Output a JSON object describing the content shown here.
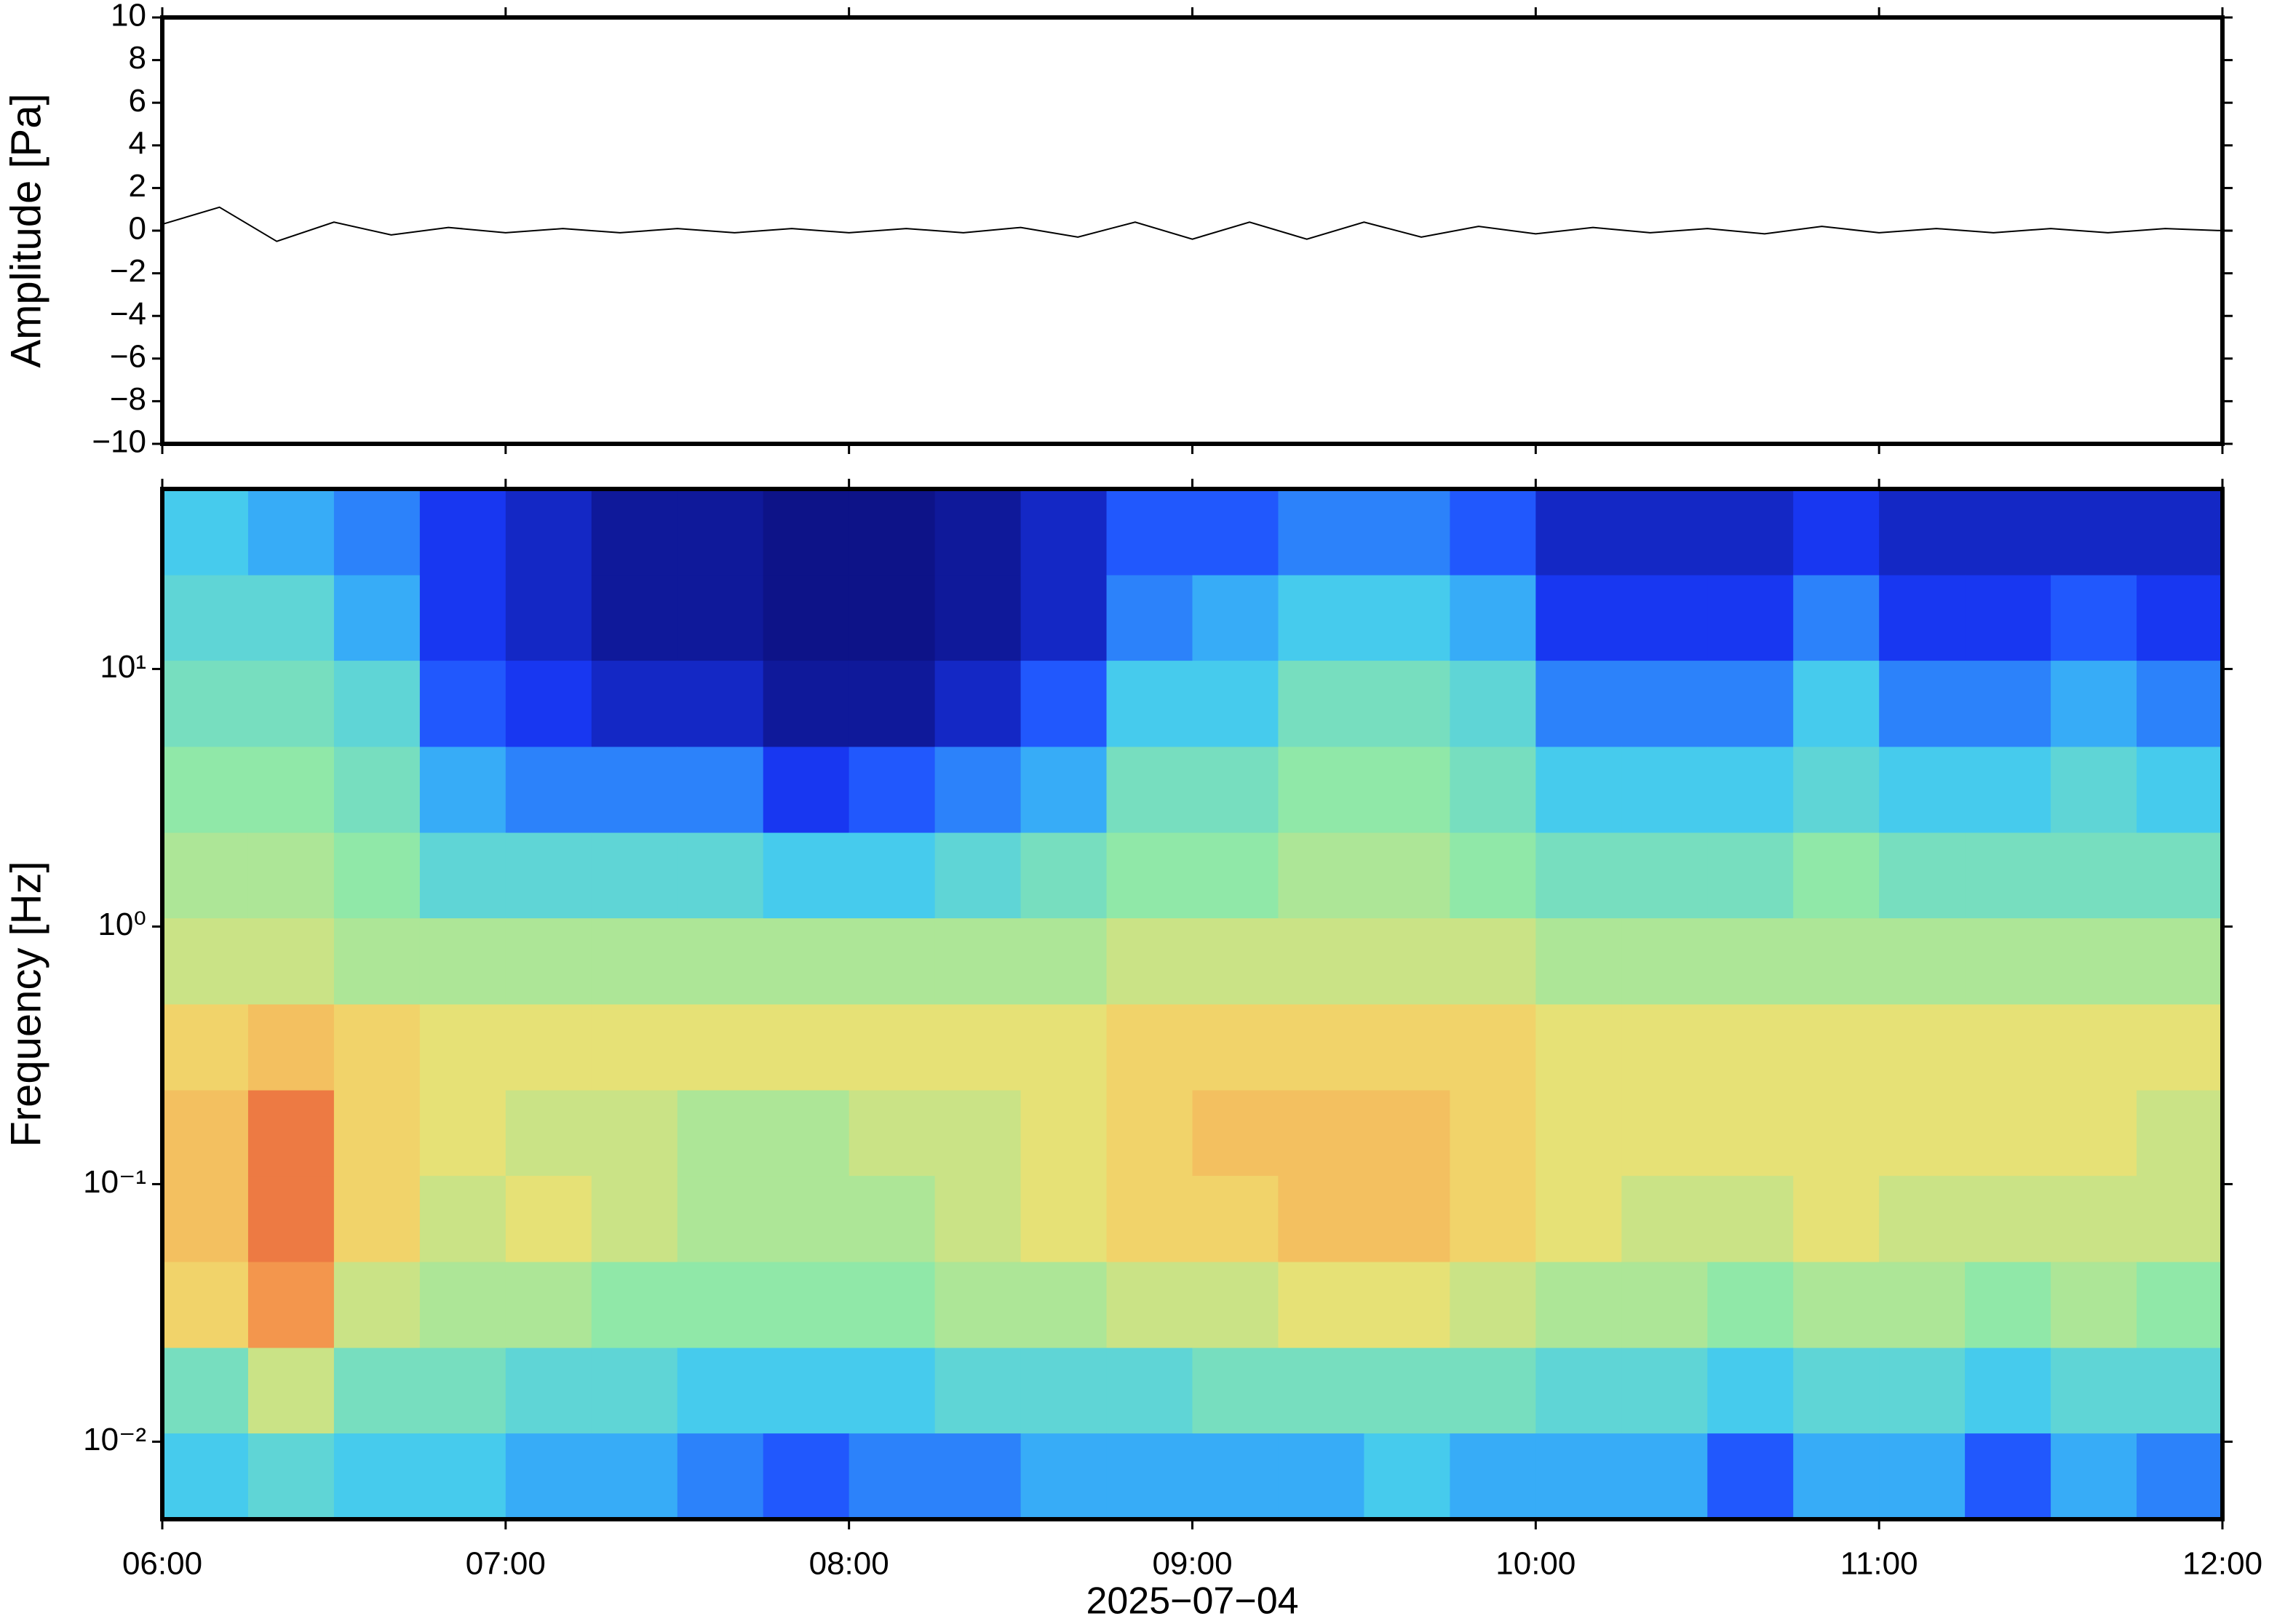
{
  "chart_data": [
    {
      "type": "line",
      "ylabel": "Amplitude [Pa]",
      "x": [
        "06:00",
        "06:10",
        "06:20",
        "06:30",
        "06:40",
        "06:50",
        "07:00",
        "07:10",
        "07:20",
        "07:30",
        "07:40",
        "07:50",
        "08:00",
        "08:10",
        "08:20",
        "08:30",
        "08:40",
        "08:50",
        "09:00",
        "09:10",
        "09:20",
        "09:30",
        "09:40",
        "09:50",
        "10:00",
        "10:10",
        "10:20",
        "10:30",
        "10:40",
        "10:50",
        "11:00",
        "11:10",
        "11:20",
        "11:30",
        "11:40",
        "11:50",
        "12:00"
      ],
      "values": [
        0.3,
        1.1,
        -0.5,
        0.4,
        -0.2,
        0.15,
        -0.1,
        0.1,
        -0.1,
        0.1,
        -0.1,
        0.1,
        -0.1,
        0.1,
        -0.1,
        0.15,
        -0.3,
        0.4,
        -0.4,
        0.4,
        -0.4,
        0.4,
        -0.3,
        0.2,
        -0.15,
        0.15,
        -0.1,
        0.1,
        -0.15,
        0.2,
        -0.1,
        0.1,
        -0.1,
        0.1,
        -0.1,
        0.1,
        0
      ],
      "color": "#000000",
      "xlim": [
        "06:00",
        "12:00"
      ],
      "ylim": [
        -10,
        10
      ],
      "yticks": [
        10,
        8,
        6,
        4,
        2,
        0,
        {
          "value": -2,
          "label": "−2"
        },
        {
          "value": -4,
          "label": "−4"
        },
        {
          "value": -6,
          "label": "−6"
        },
        {
          "value": -8,
          "label": "−8"
        },
        {
          "value": -10,
          "label": "−10"
        }
      ]
    },
    {
      "type": "heatmap",
      "ylabel": "Frequency [Hz]",
      "xlabel": "2025−07−04",
      "xbins": [
        "06:00",
        "06:15",
        "06:30",
        "06:45",
        "07:00",
        "07:15",
        "07:30",
        "07:45",
        "08:00",
        "08:15",
        "08:30",
        "08:45",
        "09:00",
        "09:15",
        "09:30",
        "09:45",
        "10:00",
        "10:15",
        "10:30",
        "10:45",
        "11:00",
        "11:15",
        "11:30",
        "11:45",
        "12:00"
      ],
      "ybins": [
        0.005,
        0.0108,
        0.0232,
        0.05,
        0.108,
        0.232,
        0.5,
        1.08,
        2.32,
        5,
        10.8,
        23.2,
        50
      ],
      "values": [
        [
          0.35,
          0.45,
          0.7,
          0.75,
          0.75,
          0.7,
          0.6,
          0.55,
          0.5,
          0.45,
          0.4,
          0.35
        ],
        [
          0.4,
          0.6,
          0.85,
          0.9,
          0.9,
          0.75,
          0.6,
          0.55,
          0.5,
          0.45,
          0.4,
          0.3
        ],
        [
          0.35,
          0.45,
          0.6,
          0.7,
          0.7,
          0.7,
          0.55,
          0.5,
          0.45,
          0.4,
          0.3,
          0.25
        ],
        [
          0.35,
          0.45,
          0.55,
          0.6,
          0.65,
          0.65,
          0.55,
          0.4,
          0.3,
          0.2,
          0.15,
          0.15
        ],
        [
          0.3,
          0.4,
          0.55,
          0.65,
          0.6,
          0.65,
          0.55,
          0.4,
          0.25,
          0.15,
          0.1,
          0.1
        ],
        [
          0.3,
          0.4,
          0.5,
          0.6,
          0.6,
          0.65,
          0.55,
          0.4,
          0.25,
          0.1,
          0.05,
          0.05
        ],
        [
          0.25,
          0.35,
          0.5,
          0.55,
          0.55,
          0.65,
          0.55,
          0.4,
          0.25,
          0.1,
          0.05,
          0.05
        ],
        [
          0.2,
          0.35,
          0.5,
          0.55,
          0.55,
          0.65,
          0.55,
          0.35,
          0.15,
          0.05,
          0.03,
          0.03
        ],
        [
          0.25,
          0.35,
          0.5,
          0.55,
          0.6,
          0.65,
          0.55,
          0.35,
          0.2,
          0.05,
          0.03,
          0.03
        ],
        [
          0.25,
          0.4,
          0.55,
          0.6,
          0.6,
          0.65,
          0.55,
          0.4,
          0.25,
          0.1,
          0.05,
          0.05
        ],
        [
          0.3,
          0.4,
          0.55,
          0.65,
          0.65,
          0.65,
          0.55,
          0.45,
          0.3,
          0.2,
          0.1,
          0.1
        ],
        [
          0.3,
          0.4,
          0.6,
          0.7,
          0.7,
          0.7,
          0.6,
          0.5,
          0.45,
          0.35,
          0.25,
          0.2
        ],
        [
          0.3,
          0.45,
          0.6,
          0.7,
          0.75,
          0.7,
          0.6,
          0.5,
          0.45,
          0.35,
          0.3,
          0.2
        ],
        [
          0.3,
          0.45,
          0.65,
          0.75,
          0.75,
          0.7,
          0.6,
          0.55,
          0.5,
          0.45,
          0.35,
          0.25
        ],
        [
          0.35,
          0.45,
          0.65,
          0.75,
          0.75,
          0.7,
          0.6,
          0.55,
          0.5,
          0.45,
          0.35,
          0.25
        ],
        [
          0.3,
          0.45,
          0.6,
          0.7,
          0.7,
          0.7,
          0.6,
          0.5,
          0.45,
          0.4,
          0.3,
          0.2
        ],
        [
          0.3,
          0.4,
          0.55,
          0.65,
          0.65,
          0.65,
          0.55,
          0.45,
          0.35,
          0.25,
          0.15,
          0.1
        ],
        [
          0.3,
          0.4,
          0.55,
          0.6,
          0.65,
          0.65,
          0.55,
          0.45,
          0.35,
          0.25,
          0.15,
          0.1
        ],
        [
          0.2,
          0.35,
          0.5,
          0.6,
          0.65,
          0.65,
          0.55,
          0.45,
          0.35,
          0.25,
          0.15,
          0.1
        ],
        [
          0.3,
          0.4,
          0.55,
          0.65,
          0.65,
          0.65,
          0.55,
          0.5,
          0.4,
          0.35,
          0.25,
          0.15
        ],
        [
          0.3,
          0.4,
          0.55,
          0.6,
          0.65,
          0.65,
          0.55,
          0.45,
          0.35,
          0.25,
          0.15,
          0.1
        ],
        [
          0.2,
          0.35,
          0.5,
          0.6,
          0.65,
          0.65,
          0.55,
          0.45,
          0.35,
          0.25,
          0.15,
          0.1
        ],
        [
          0.3,
          0.4,
          0.55,
          0.6,
          0.65,
          0.65,
          0.55,
          0.45,
          0.4,
          0.3,
          0.2,
          0.1
        ],
        [
          0.25,
          0.4,
          0.5,
          0.6,
          0.6,
          0.65,
          0.55,
          0.45,
          0.35,
          0.25,
          0.15,
          0.1
        ]
      ],
      "colormap": [
        "#0a0a6e",
        "#1a3cff",
        "#3ec8f5",
        "#90e8a8",
        "#f0e070",
        "#f5a050",
        "#e04030"
      ],
      "zlim": [
        0,
        1
      ],
      "log_y": true,
      "xlim": [
        "06:00",
        "12:00"
      ],
      "xticks": [
        "06:00",
        "07:00",
        "08:00",
        "09:00",
        "10:00",
        "11:00",
        "12:00"
      ],
      "ylim": [
        0.005,
        50
      ],
      "yticks": [
        {
          "value": 10,
          "label": "10¹"
        },
        {
          "value": 1,
          "label": "10⁰"
        },
        {
          "value": 0.1,
          "label": "10⁻¹"
        },
        {
          "value": 0.01,
          "label": "10⁻²"
        }
      ]
    }
  ]
}
